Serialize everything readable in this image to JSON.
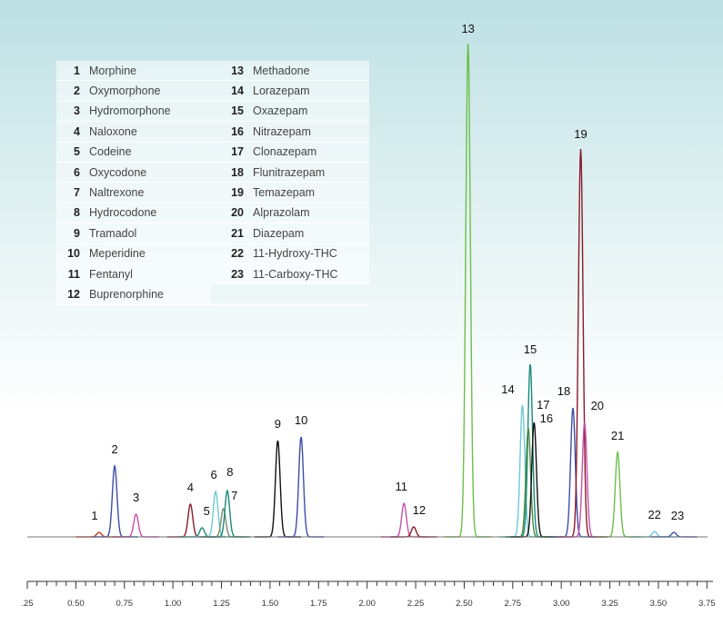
{
  "chart_data": {
    "type": "line",
    "xlim": [
      0.25,
      3.8
    ],
    "x_ticks": [
      ".25",
      "0.50",
      "0.75",
      "1.00",
      "1.25",
      "1.50",
      "1.75",
      "2.00",
      "2.25",
      "2.50",
      "2.75",
      "3.00",
      "3.25",
      "3.50",
      "3.75"
    ],
    "peaks": [
      {
        "num": "1",
        "name": "Morphine",
        "rt": 0.62,
        "height": 5,
        "color": "#c0392b"
      },
      {
        "num": "2",
        "name": "Oxymorphone",
        "rt": 0.7,
        "height": 78,
        "color": "#3b4fa3"
      },
      {
        "num": "3",
        "name": "Hydromorphone",
        "rt": 0.81,
        "height": 25,
        "color": "#c452a8"
      },
      {
        "num": "4",
        "name": "Naloxone",
        "rt": 1.09,
        "height": 36,
        "color": "#8b1a2b"
      },
      {
        "num": "5",
        "name": "Codeine",
        "rt": 1.15,
        "height": 10,
        "color": "#1a8a7a"
      },
      {
        "num": "6",
        "name": "Oxycodone",
        "rt": 1.22,
        "height": 50,
        "color": "#6fc9d6"
      },
      {
        "num": "7",
        "name": "Naltrexone",
        "rt": 1.26,
        "height": 31,
        "color": "#7a8a6a"
      },
      {
        "num": "8",
        "name": "Hydrocodone",
        "rt": 1.28,
        "height": 51,
        "color": "#1a8a7a"
      },
      {
        "num": "9",
        "name": "Tramadol",
        "rt": 1.54,
        "height": 106,
        "color": "#111111"
      },
      {
        "num": "10",
        "name": "Meperidine",
        "rt": 1.66,
        "height": 110,
        "color": "#3b4fa3"
      },
      {
        "num": "11",
        "name": "Fentanyl",
        "rt": 2.19,
        "height": 37,
        "color": "#c452a8"
      },
      {
        "num": "12",
        "name": "Buprenorphine",
        "rt": 2.24,
        "height": 11,
        "color": "#8b1a2b"
      },
      {
        "num": "13",
        "name": "Methadone",
        "rt": 2.52,
        "height": 543,
        "color": "#6cbf4a"
      },
      {
        "num": "14",
        "name": "Lorazepam",
        "rt": 2.8,
        "height": 145,
        "color": "#6fc9d6"
      },
      {
        "num": "15",
        "name": "Oxazepam",
        "rt": 2.84,
        "height": 190,
        "color": "#1a8a7a"
      },
      {
        "num": "16",
        "name": "Nitrazepam",
        "rt": 2.83,
        "height": 120,
        "color": "#4a8a40"
      },
      {
        "num": "17",
        "name": "Clonazepam",
        "rt": 2.86,
        "height": 126,
        "color": "#111111"
      },
      {
        "num": "18",
        "name": "Flunitrazepam",
        "rt": 3.06,
        "height": 142,
        "color": "#3b4fa3"
      },
      {
        "num": "19",
        "name": "Temazepam",
        "rt": 3.1,
        "height": 427,
        "color": "#8b1a2b"
      },
      {
        "num": "20",
        "name": "Alprazolam",
        "rt": 3.12,
        "height": 126,
        "color": "#c452a8"
      },
      {
        "num": "21",
        "name": "Diazepam",
        "rt": 3.29,
        "height": 93,
        "color": "#6cbf4a"
      },
      {
        "num": "22",
        "name": "11-Hydroxy-THC",
        "rt": 3.48,
        "height": 6,
        "color": "#6fc9d6"
      },
      {
        "num": "23",
        "name": "11-Carboxy-THC",
        "rt": 3.58,
        "height": 5,
        "color": "#3b4fa3"
      }
    ],
    "grid": false,
    "legend_position": "top-left"
  }
}
